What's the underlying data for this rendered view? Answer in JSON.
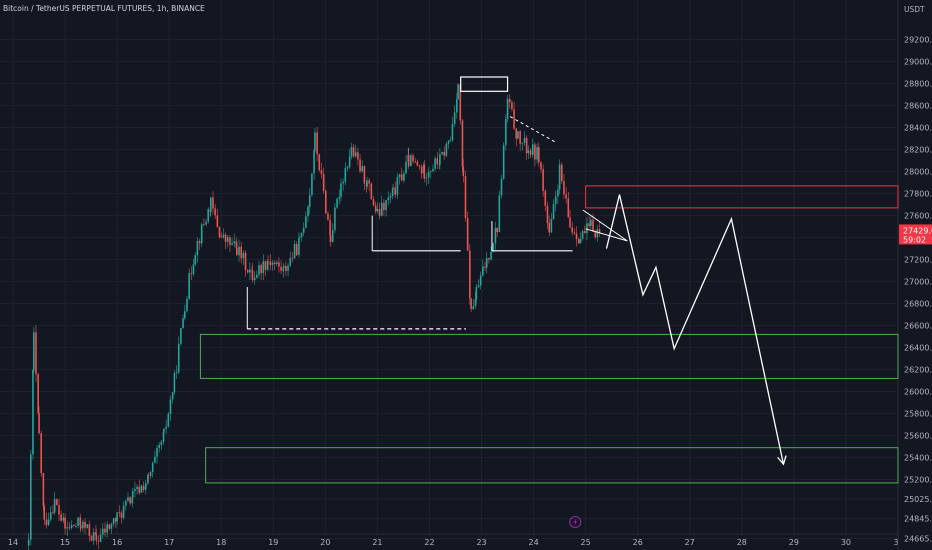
{
  "header": {
    "title": "Bitcoin / TetherUS PERPETUAL FUTURES, 1h, BINANCE",
    "currency": "USDT"
  },
  "colors": {
    "background": "#131722",
    "grid": "#1e222d",
    "up": "#26a69a",
    "down": "#ef5350",
    "price_tag": "#f23645",
    "drawing": "#ffffff",
    "support_zone": "#4caf50",
    "resistance_zone": "#f23645"
  },
  "chart_data": {
    "type": "candlestick",
    "y_ticks": [
      "29200.0",
      "29000.0",
      "28800.0",
      "28600.0",
      "28400.0",
      "28200.0",
      "28000.0",
      "27800.0",
      "27600.0",
      "27400.0",
      "27200.0",
      "27000.0",
      "26800.0",
      "26600.0",
      "26400.0",
      "26200.0",
      "26000.0",
      "25800.0",
      "25600.0",
      "25400.0",
      "25200.0",
      "25025.0",
      "24845.0",
      "24665.0"
    ],
    "x_ticks": [
      "14",
      "15",
      "16",
      "17",
      "18",
      "19",
      "20",
      "21",
      "22",
      "23",
      "24",
      "25",
      "26",
      "27",
      "28",
      "29",
      "30",
      "3"
    ],
    "ylim": [
      24560,
      29560
    ],
    "x_day_range": [
      13.75,
      31.0
    ],
    "current_price": {
      "label": "27429.0",
      "countdown": "59:02"
    },
    "candle_path": [
      [
        14.3,
        24600
      ],
      [
        14.4,
        26500
      ],
      [
        14.5,
        25600
      ],
      [
        14.6,
        24800
      ],
      [
        14.8,
        25000
      ],
      [
        15.0,
        24750
      ],
      [
        15.3,
        24800
      ],
      [
        15.6,
        24650
      ],
      [
        16.0,
        24850
      ],
      [
        16.3,
        25050
      ],
      [
        16.6,
        25200
      ],
      [
        16.9,
        25600
      ],
      [
        17.1,
        26100
      ],
      [
        17.3,
        26800
      ],
      [
        17.5,
        27300
      ],
      [
        17.8,
        27700
      ],
      [
        18.0,
        27400
      ],
      [
        18.3,
        27300
      ],
      [
        18.6,
        27050
      ],
      [
        18.9,
        27200
      ],
      [
        19.2,
        27100
      ],
      [
        19.5,
        27350
      ],
      [
        19.7,
        27800
      ],
      [
        19.8,
        28300
      ],
      [
        20.1,
        27400
      ],
      [
        20.3,
        27900
      ],
      [
        20.5,
        28200
      ],
      [
        20.8,
        27900
      ],
      [
        21.0,
        27600
      ],
      [
        21.3,
        27800
      ],
      [
        21.6,
        28100
      ],
      [
        21.9,
        28000
      ],
      [
        22.2,
        28100
      ],
      [
        22.4,
        28300
      ],
      [
        22.55,
        28800
      ],
      [
        22.65,
        27900
      ],
      [
        22.8,
        26700
      ],
      [
        22.9,
        26900
      ],
      [
        23.1,
        27200
      ],
      [
        23.3,
        27500
      ],
      [
        23.5,
        28650
      ],
      [
        23.7,
        28300
      ],
      [
        23.9,
        28200
      ],
      [
        24.1,
        28150
      ],
      [
        24.3,
        27400
      ],
      [
        24.5,
        28000
      ],
      [
        24.7,
        27500
      ],
      [
        24.9,
        27400
      ],
      [
        25.1,
        27500
      ],
      [
        25.3,
        27430
      ]
    ],
    "series_up_color": "#26a69a",
    "series_down_color": "#ef5350",
    "annotations": {
      "support_zones": [
        {
          "y1": 26520,
          "y2": 26120,
          "x_start": 17.6
        },
        {
          "y1": 25490,
          "y2": 25170,
          "x_start": 17.7
        }
      ],
      "resistance_zone": {
        "y1": 27870,
        "y2": 27670,
        "x_start": 25.0
      },
      "horizontal_levels": [
        {
          "y": 27280,
          "x1": 20.9,
          "x2": 22.6,
          "style": "solid"
        },
        {
          "y": 27280,
          "x1": 23.2,
          "x2": 24.75,
          "style": "solid"
        },
        {
          "y": 26570,
          "x1": 18.5,
          "x2": 22.7,
          "style": "dashed"
        }
      ],
      "top_box": {
        "x1": 22.6,
        "x2": 23.5,
        "y1": 28860,
        "y2": 28730
      },
      "projection_path": [
        [
          25.4,
          27300
        ],
        [
          25.65,
          27790
        ],
        [
          26.1,
          26880
        ],
        [
          26.35,
          27130
        ],
        [
          26.7,
          26390
        ],
        [
          27.8,
          27570
        ],
        [
          28.8,
          25340
        ]
      ]
    }
  }
}
